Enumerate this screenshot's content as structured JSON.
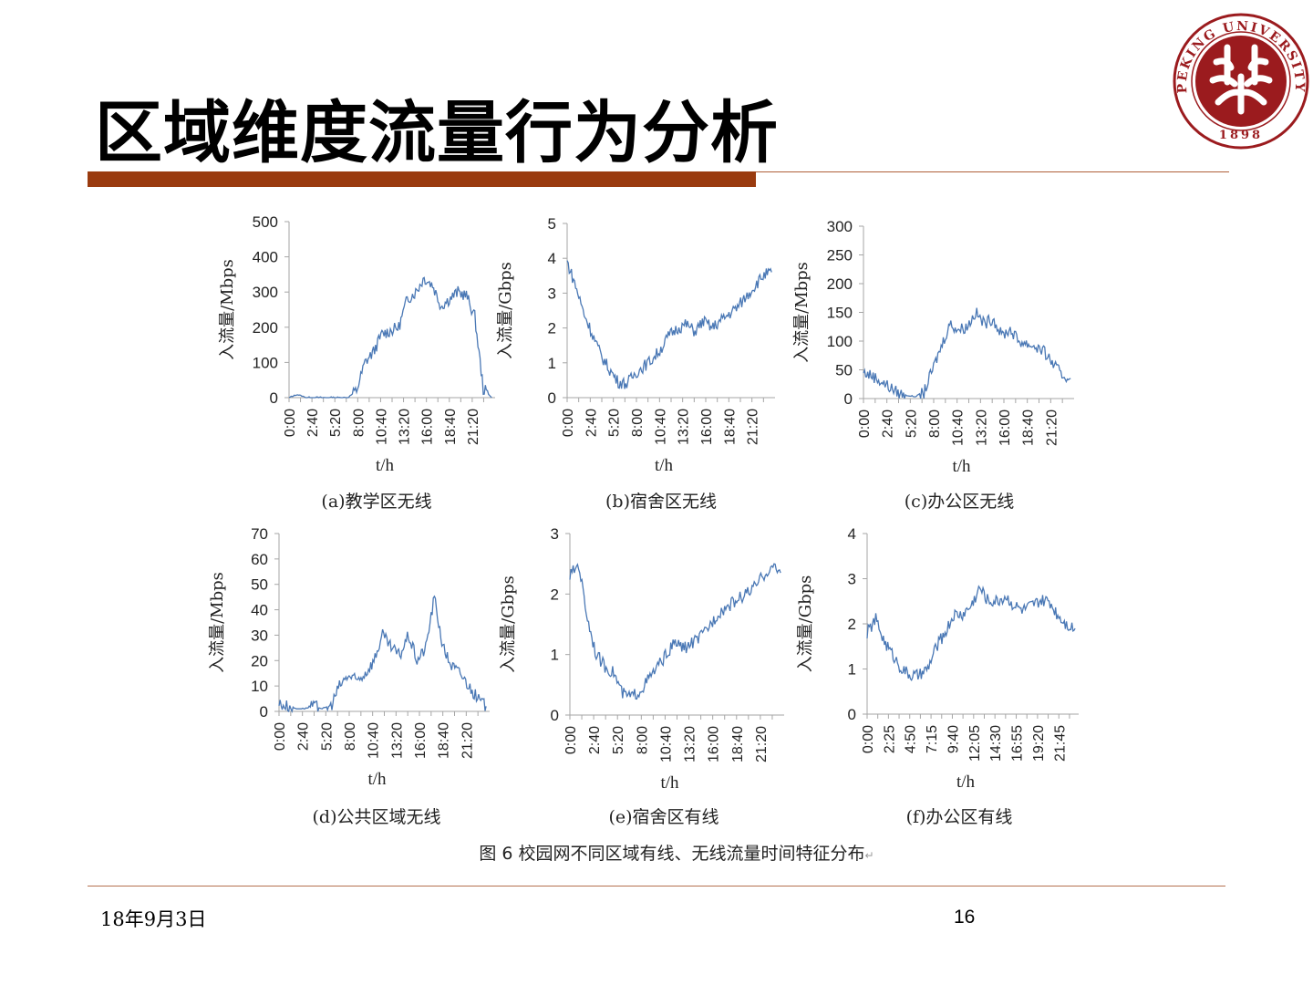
{
  "slide": {
    "title": "区域维度流量行为分析",
    "footer_date": "18年9月3日",
    "page_number": "16",
    "figure_caption": "图 6  校园网不同区域有线、无线流量时间特征分布",
    "logo_text": {
      "ring": "PEKING UNIVERSITY",
      "year": "1898"
    }
  },
  "colors": {
    "line": "#4a78b5",
    "axis": "#a6a6a6",
    "accent_bar": "#9a3b0f",
    "logo": "#9b1b1e"
  },
  "chart_data": [
    {
      "id": "a",
      "type": "line",
      "caption": "(a)教学区无线",
      "ylabel": "入流量/Mbps",
      "xlabel": "t/h",
      "ylim": [
        0,
        500
      ],
      "yticks": [
        0,
        100,
        200,
        300,
        400,
        500
      ],
      "xticks": [
        "0:00",
        "2:40",
        "5:20",
        "8:00",
        "10:40",
        "13:20",
        "16:00",
        "18:40",
        "21:20"
      ],
      "xtick_step_h": 2.6667,
      "values": [
        0,
        8,
        0,
        0,
        0,
        0,
        0,
        0,
        20,
        100,
        130,
        180,
        190,
        200,
        280,
        300,
        340,
        320,
        260,
        280,
        300,
        290,
        230,
        25,
        0
      ]
    },
    {
      "id": "b",
      "type": "line",
      "caption": "(b)宿舍区无线",
      "ylabel": "入流量/Gbps",
      "xlabel": "t/h",
      "ylim": [
        0,
        5
      ],
      "yticks": [
        0,
        1,
        2,
        3,
        4,
        5
      ],
      "xticks": [
        "0:00",
        "2:40",
        "5:20",
        "8:00",
        "10:40",
        "13:20",
        "16:00",
        "18:40",
        "21:20"
      ],
      "xtick_step_h": 2.6667,
      "values": [
        3.9,
        3.2,
        2.4,
        1.8,
        1.2,
        0.8,
        0.45,
        0.4,
        0.7,
        0.9,
        1.1,
        1.4,
        1.8,
        2.0,
        2.1,
        1.9,
        2.2,
        2.0,
        2.2,
        2.4,
        2.6,
        2.9,
        3.2,
        3.5,
        3.6
      ]
    },
    {
      "id": "c",
      "type": "line",
      "caption": "(c)办公区无线",
      "ylabel": "入流量/Mbps",
      "xlabel": "t/h",
      "ylim": [
        0,
        300
      ],
      "yticks": [
        0,
        50,
        100,
        150,
        200,
        250,
        300
      ],
      "xticks": [
        "0:00",
        "2:40",
        "5:20",
        "8:00",
        "10:40",
        "13:20",
        "16:00",
        "18:40",
        "21:20"
      ],
      "xtick_step_h": 2.6667,
      "values": [
        45,
        40,
        30,
        20,
        10,
        5,
        3,
        10,
        50,
        90,
        130,
        120,
        125,
        150,
        130,
        140,
        110,
        120,
        100,
        95,
        90,
        80,
        60,
        40,
        35
      ]
    },
    {
      "id": "d",
      "type": "line",
      "caption": "(d)公共区域无线",
      "ylabel": "入流量/Mbps",
      "xlabel": "t/h",
      "ylim": [
        0,
        70
      ],
      "yticks": [
        0,
        10,
        20,
        30,
        40,
        50,
        60,
        70
      ],
      "xticks": [
        "0:00",
        "2:40",
        "5:20",
        "8:00",
        "10:40",
        "13:20",
        "16:00",
        "18:40",
        "21:20"
      ],
      "xtick_step_h": 2.6667,
      "values": [
        3,
        2,
        1,
        1,
        2,
        1,
        2,
        10,
        14,
        12,
        15,
        20,
        30,
        25,
        22,
        30,
        20,
        25,
        45,
        25,
        18,
        15,
        10,
        5,
        2
      ]
    },
    {
      "id": "e",
      "type": "line",
      "caption": "(e)宿舍区有线",
      "ylabel": "入流量/Gbps",
      "xlabel": "t/h",
      "ylim": [
        0,
        3
      ],
      "yticks": [
        0,
        1,
        2,
        3
      ],
      "xticks": [
        "0:00",
        "2:40",
        "5:20",
        "8:00",
        "10:40",
        "13:20",
        "16:00",
        "18:40",
        "21:20"
      ],
      "xtick_step_h": 2.6667,
      "values": [
        2.3,
        2.5,
        1.6,
        1.0,
        0.8,
        0.7,
        0.35,
        0.3,
        0.4,
        0.6,
        0.8,
        1.0,
        1.2,
        1.1,
        1.2,
        1.3,
        1.5,
        1.7,
        1.8,
        1.9,
        2.0,
        2.1,
        2.3,
        2.45,
        2.35
      ]
    },
    {
      "id": "f",
      "type": "line",
      "caption": "(f)办公区有线",
      "ylabel": "入流量/Gbps",
      "xlabel": "t/h",
      "ylim": [
        0,
        4
      ],
      "yticks": [
        0,
        1,
        2,
        3,
        4
      ],
      "xticks": [
        "0:00",
        "2:25",
        "4:50",
        "7:15",
        "9:40",
        "12:05",
        "14:30",
        "16:55",
        "19:20",
        "21:45"
      ],
      "xtick_step_h": 2.4167,
      "values": [
        1.8,
        2.1,
        1.6,
        1.3,
        1.0,
        0.85,
        0.85,
        1.0,
        1.5,
        1.8,
        2.2,
        2.2,
        2.4,
        2.8,
        2.5,
        2.5,
        2.6,
        2.4,
        2.3,
        2.4,
        2.5,
        2.5,
        2.2,
        2.0,
        1.9
      ]
    }
  ]
}
